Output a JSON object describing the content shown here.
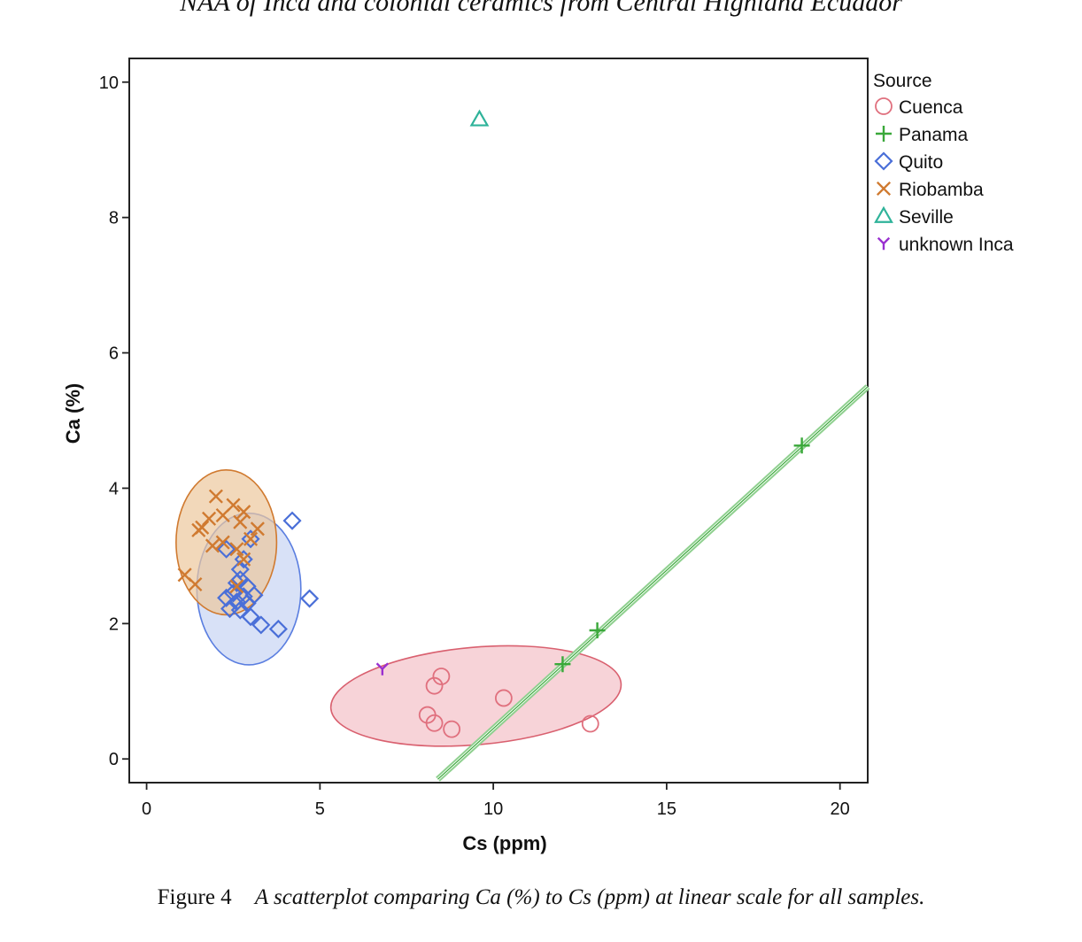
{
  "page_header": "NAA of Inca and colonial ceramics from Central Highland Ecuador",
  "caption": {
    "label": "Figure 4",
    "text": "A scatterplot comparing Ca (%) to Cs (ppm) at linear scale for all samples."
  },
  "chart_data": {
    "type": "scatter",
    "title": "",
    "xlabel": "Cs (ppm)",
    "ylabel": "Ca (%)",
    "xlim": [
      -0.5,
      20.8
    ],
    "ylim": [
      -0.35,
      10.35
    ],
    "xticks": [
      0,
      5,
      10,
      15,
      20
    ],
    "yticks": [
      0,
      2,
      4,
      6,
      8,
      10
    ],
    "grid": false,
    "legend_title": "Source",
    "legend_position": "right",
    "series": [
      {
        "name": "Cuenca",
        "marker": "circle",
        "color": "#e0707e",
        "points": [
          [
            8.1,
            0.65
          ],
          [
            8.3,
            1.08
          ],
          [
            8.3,
            0.53
          ],
          [
            8.5,
            1.22
          ],
          [
            8.8,
            0.44
          ],
          [
            10.3,
            0.9
          ],
          [
            12.8,
            0.52
          ]
        ],
        "ellipse": {
          "cx": 9.5,
          "cy": 0.93,
          "rx": 4.2,
          "ry": 0.72,
          "angle_deg": 5,
          "fill": "#f4c0c7",
          "stroke": "#d9606f"
        }
      },
      {
        "name": "Panama",
        "marker": "plus",
        "color": "#3aa83a",
        "points": [
          [
            12.0,
            1.4
          ],
          [
            13.0,
            1.9
          ],
          [
            18.9,
            4.63
          ]
        ],
        "fit_line": {
          "x": [
            8.4,
            20.8
          ],
          "y": [
            -0.3,
            5.5
          ]
        }
      },
      {
        "name": "Quito",
        "marker": "diamond",
        "color": "#4a6fd8",
        "points": [
          [
            4.2,
            3.52
          ],
          [
            2.3,
            3.1
          ],
          [
            3.0,
            3.25
          ],
          [
            2.8,
            2.95
          ],
          [
            2.7,
            2.8
          ],
          [
            2.6,
            2.6
          ],
          [
            2.9,
            2.55
          ],
          [
            2.5,
            2.45
          ],
          [
            2.8,
            2.4
          ],
          [
            3.1,
            2.42
          ],
          [
            2.6,
            2.32
          ],
          [
            2.9,
            2.3
          ],
          [
            2.3,
            2.38
          ],
          [
            2.4,
            2.22
          ],
          [
            2.7,
            2.2
          ],
          [
            3.0,
            2.1
          ],
          [
            3.3,
            1.98
          ],
          [
            3.8,
            1.92
          ],
          [
            4.7,
            2.37
          ],
          [
            2.7,
            2.65
          ]
        ],
        "ellipse": {
          "cx": 2.95,
          "cy": 2.51,
          "rx": 1.5,
          "ry": 1.12,
          "angle_deg": 0,
          "fill": "#c8d4f4",
          "stroke": "#5a7ee0"
        }
      },
      {
        "name": "Riobamba",
        "marker": "x",
        "color": "#d07a30",
        "points": [
          [
            2.0,
            3.88
          ],
          [
            2.5,
            3.75
          ],
          [
            2.8,
            3.65
          ],
          [
            2.2,
            3.6
          ],
          [
            1.8,
            3.55
          ],
          [
            2.7,
            3.5
          ],
          [
            1.6,
            3.42
          ],
          [
            1.5,
            3.38
          ],
          [
            3.2,
            3.4
          ],
          [
            3.0,
            3.25
          ],
          [
            2.6,
            3.1
          ],
          [
            2.2,
            3.2
          ],
          [
            1.9,
            3.15
          ],
          [
            2.8,
            2.95
          ],
          [
            1.1,
            2.72
          ],
          [
            1.4,
            2.58
          ],
          [
            2.6,
            2.55
          ]
        ],
        "ellipse": {
          "cx": 2.3,
          "cy": 3.2,
          "rx": 1.45,
          "ry": 1.07,
          "angle_deg": 0,
          "fill": "#edc89c",
          "stroke": "#d07a30"
        }
      },
      {
        "name": "Seville",
        "marker": "triangle",
        "color": "#2fb39a",
        "points": [
          [
            9.6,
            9.45
          ]
        ]
      },
      {
        "name": "unknown Inca",
        "marker": "y",
        "color": "#9a30d0",
        "points": [
          [
            6.8,
            1.33
          ]
        ]
      }
    ]
  }
}
